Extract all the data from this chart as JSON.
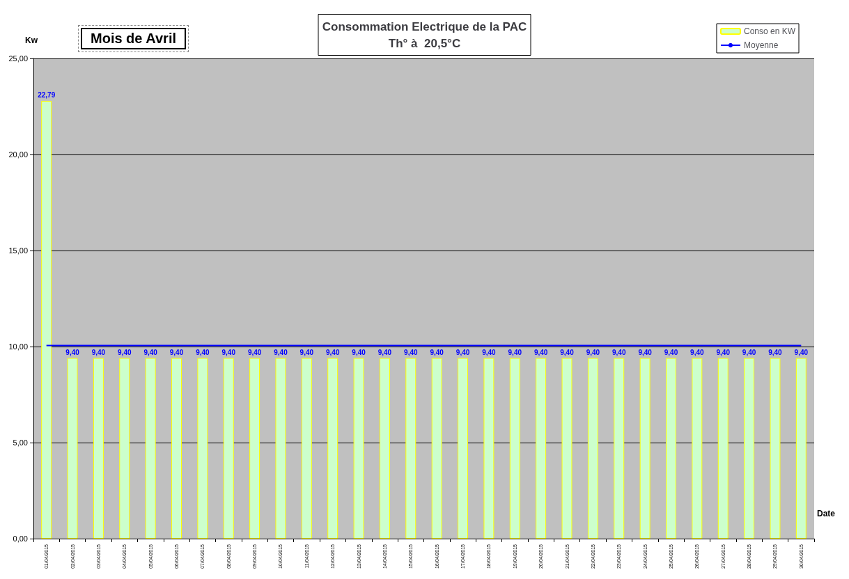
{
  "chart_data": {
    "type": "bar",
    "title": "Consommation Electrique de la PAC\nTh° à  20,5°C",
    "xlabel": "Date",
    "ylabel": "Kw",
    "annotations": [
      "Mois  de  Avril"
    ],
    "categories": [
      "01/04/2015",
      "02/04/2015",
      "03/04/2015",
      "04/04/2015",
      "05/04/2015",
      "06/04/2015",
      "07/04/2015",
      "08/04/2015",
      "09/04/2015",
      "10/04/2015",
      "11/04/2015",
      "12/04/2015",
      "13/04/2015",
      "14/04/2015",
      "15/04/2015",
      "16/04/2015",
      "17/04/2015",
      "18/04/2015",
      "19/04/2015",
      "20/04/2015",
      "21/04/2015",
      "22/04/2015",
      "23/04/2015",
      "24/04/2015",
      "25/04/2015",
      "26/04/2015",
      "27/04/2015",
      "28/04/2015",
      "29/04/2015",
      "30/04/2015"
    ],
    "series": [
      {
        "name": "Conso en KW",
        "color": "#ccffcc",
        "values": [
          22.79,
          9.4,
          9.4,
          9.4,
          9.4,
          9.4,
          9.4,
          9.4,
          9.4,
          9.4,
          9.4,
          9.4,
          9.4,
          9.4,
          9.4,
          9.4,
          9.4,
          9.4,
          9.4,
          9.4,
          9.4,
          9.4,
          9.4,
          9.4,
          9.4,
          9.4,
          9.4,
          9.4,
          9.4,
          9.4
        ],
        "value_labels": [
          "22,79",
          "9,40",
          "9,40",
          "9,40",
          "9,40",
          "9,40",
          "9,40",
          "9,40",
          "9,40",
          "9,40",
          "9,40",
          "9,40",
          "9,40",
          "9,40",
          "9,40",
          "9,40",
          "9,40",
          "9,40",
          "9,40",
          "9,40",
          "9,40",
          "9,40",
          "9,40",
          "9,40",
          "9,40",
          "9,40",
          "9,40",
          "9,40",
          "9,40",
          "9,40"
        ]
      },
      {
        "name": "Moyenne",
        "type": "line",
        "color": "#0000ff",
        "values": [
          10.05,
          10.05,
          10.05,
          10.05,
          10.05,
          10.05,
          10.05,
          10.05,
          10.05,
          10.05,
          10.05,
          10.05,
          10.05,
          10.05,
          10.05,
          10.05,
          10.05,
          10.05,
          10.05,
          10.05,
          10.05,
          10.05,
          10.05,
          10.05,
          10.05,
          10.05,
          10.05,
          10.05,
          10.05,
          10.05
        ]
      }
    ],
    "ylim": [
      0,
      25
    ],
    "yticks": [
      {
        "value": 0,
        "label": "0,00"
      },
      {
        "value": 5,
        "label": "5,00"
      },
      {
        "value": 10,
        "label": "10,00"
      },
      {
        "value": 15,
        "label": "15,00"
      },
      {
        "value": 20,
        "label": "20,00"
      },
      {
        "value": 25,
        "label": "25,00"
      }
    ],
    "grid": "y",
    "legend": "top right",
    "marker": "none"
  }
}
